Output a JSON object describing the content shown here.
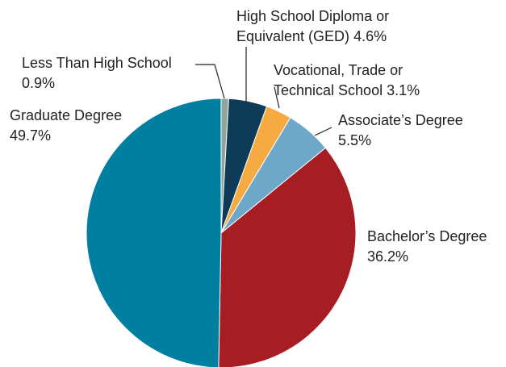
{
  "chart_data": {
    "type": "pie",
    "categories": [
      "Less Than High School",
      "High School Diploma or Equivalent (GED)",
      "Vocational, Trade or Technical School",
      "Associate’s Degree",
      "Bachelor’s Degree",
      "Graduate Degree"
    ],
    "values": [
      0.9,
      4.6,
      3.1,
      5.5,
      36.2,
      49.7
    ],
    "value_labels": [
      "0.9%",
      "4.6%",
      "3.1%",
      "5.5%",
      "36.2%",
      "49.7%"
    ],
    "colors": [
      "#8fa59c",
      "#0e3b57",
      "#f6aa42",
      "#6ea8c9",
      "#a61e24",
      "#007fa1"
    ]
  }
}
